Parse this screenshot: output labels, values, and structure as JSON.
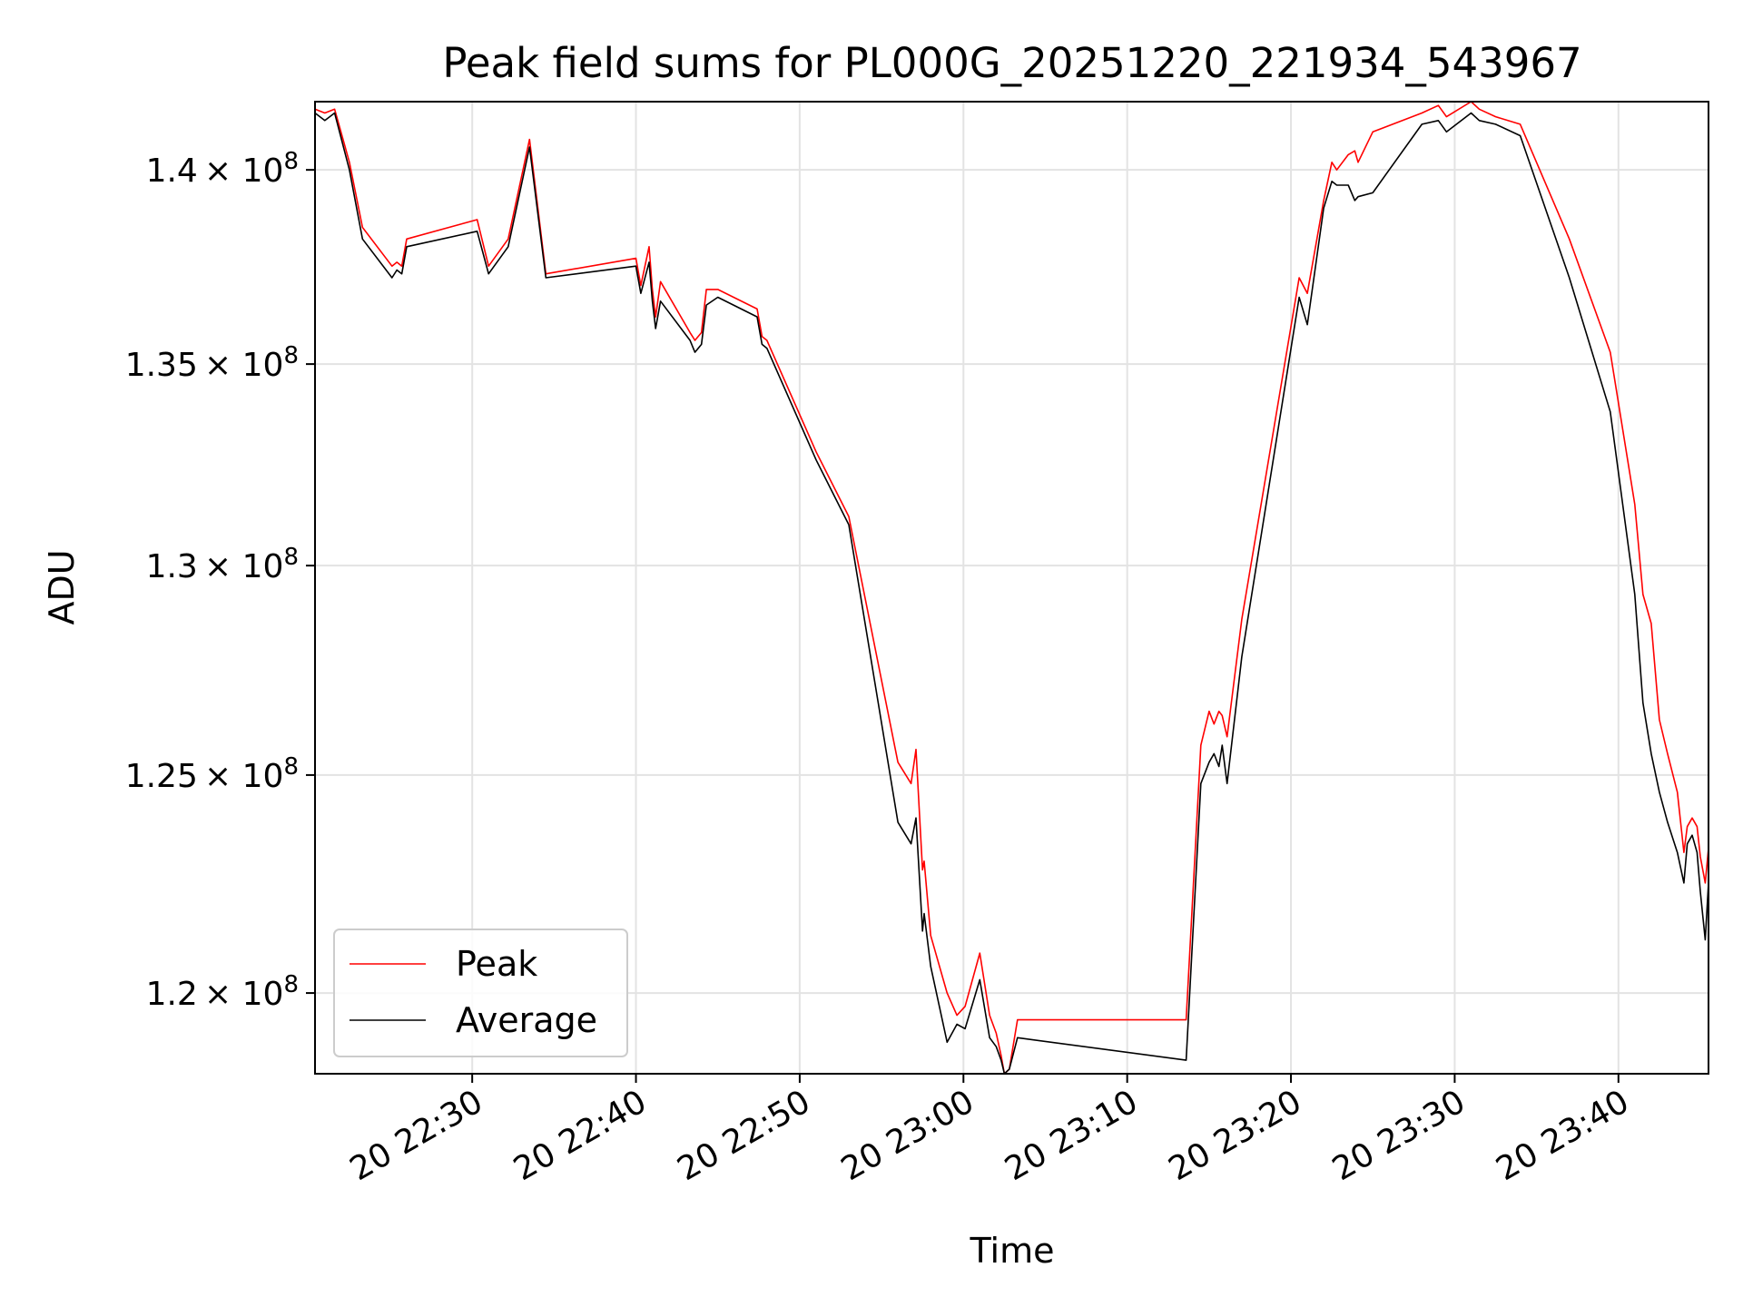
{
  "chart_data": {
    "type": "line",
    "title": "Peak field sums for PL000G_20251220_221934_543967",
    "xlabel": "Time",
    "ylabel": "ADU",
    "y_scale": "log",
    "grid": true,
    "legend_position": "lower-left",
    "x_unit": "minutes after 22:20 on the 20th",
    "xlim": [
      0.4,
      85.5
    ],
    "ylim": [
      118200000,
      141800000
    ],
    "x_ticks": [
      {
        "x": 10,
        "label": "20 22:30"
      },
      {
        "x": 20,
        "label": "20 22:40"
      },
      {
        "x": 30,
        "label": "20 22:50"
      },
      {
        "x": 40,
        "label": "20 23:00"
      },
      {
        "x": 50,
        "label": "20 23:10"
      },
      {
        "x": 60,
        "label": "20 23:20"
      },
      {
        "x": 70,
        "label": "20 23:30"
      },
      {
        "x": 80,
        "label": "20 23:40"
      }
    ],
    "y_ticks": [
      {
        "y": 120000000,
        "mantissa": "1.2",
        "exponent": "8"
      },
      {
        "y": 125000000,
        "mantissa": "1.25",
        "exponent": "8"
      },
      {
        "y": 130000000,
        "mantissa": "1.3",
        "exponent": "8"
      },
      {
        "y": 135000000,
        "mantissa": "1.35",
        "exponent": "8"
      },
      {
        "y": 140000000,
        "mantissa": "1.4",
        "exponent": "8"
      }
    ],
    "tick_times_label": "× 10",
    "series": [
      {
        "name": "Peak",
        "color": "#ff0000",
        "points": [
          [
            0.4,
            141.6
          ],
          [
            1.0,
            141.5
          ],
          [
            1.6,
            141.6
          ],
          [
            2.5,
            140.2
          ],
          [
            3.3,
            138.5
          ],
          [
            5.1,
            137.5
          ],
          [
            5.4,
            137.6
          ],
          [
            5.7,
            137.5
          ],
          [
            6.0,
            138.2
          ],
          [
            10.3,
            138.7
          ],
          [
            11.0,
            137.5
          ],
          [
            12.2,
            138.2
          ],
          [
            13.5,
            140.8
          ],
          [
            14.5,
            137.3
          ],
          [
            20.0,
            137.7
          ],
          [
            20.3,
            137.0
          ],
          [
            20.8,
            138.0
          ],
          [
            21.0,
            136.9
          ],
          [
            21.2,
            136.2
          ],
          [
            21.5,
            137.1
          ],
          [
            23.3,
            135.8
          ],
          [
            23.6,
            135.6
          ],
          [
            24.0,
            135.8
          ],
          [
            24.3,
            136.9
          ],
          [
            25.0,
            136.9
          ],
          [
            27.4,
            136.4
          ],
          [
            27.7,
            135.7
          ],
          [
            28.0,
            135.6
          ],
          [
            31.0,
            132.8
          ],
          [
            33.0,
            131.2
          ],
          [
            36.0,
            125.3
          ],
          [
            36.8,
            124.8
          ],
          [
            37.1,
            125.6
          ],
          [
            37.5,
            122.8
          ],
          [
            37.6,
            123.0
          ],
          [
            38.0,
            121.3
          ],
          [
            39.0,
            120.0
          ],
          [
            39.6,
            119.5
          ],
          [
            40.1,
            119.7
          ],
          [
            41.0,
            120.9
          ],
          [
            41.6,
            119.5
          ],
          [
            42.0,
            119.1
          ],
          [
            42.3,
            118.6
          ],
          [
            42.5,
            118.2
          ],
          [
            42.8,
            118.3
          ],
          [
            43.3,
            119.4
          ],
          [
            53.6,
            119.4
          ],
          [
            54.5,
            125.7
          ],
          [
            55.0,
            126.5
          ],
          [
            55.3,
            126.2
          ],
          [
            55.6,
            126.5
          ],
          [
            55.8,
            126.4
          ],
          [
            56.1,
            125.9
          ],
          [
            57.0,
            128.7
          ],
          [
            60.5,
            137.2
          ],
          [
            61.0,
            136.8
          ],
          [
            62.0,
            139.2
          ],
          [
            62.5,
            140.2
          ],
          [
            62.8,
            140.0
          ],
          [
            63.5,
            140.4
          ],
          [
            63.9,
            140.5
          ],
          [
            64.1,
            140.2
          ],
          [
            65.0,
            141.0
          ],
          [
            68.0,
            141.5
          ],
          [
            69.0,
            141.7
          ],
          [
            69.5,
            141.4
          ],
          [
            71.0,
            141.8
          ],
          [
            71.5,
            141.6
          ],
          [
            72.5,
            141.4
          ],
          [
            74.0,
            141.2
          ],
          [
            77.0,
            138.2
          ],
          [
            79.5,
            135.3
          ],
          [
            81.0,
            131.5
          ],
          [
            81.5,
            129.3
          ],
          [
            82.0,
            128.6
          ],
          [
            82.5,
            126.3
          ],
          [
            83.0,
            125.5
          ],
          [
            83.6,
            124.6
          ],
          [
            84.0,
            123.2
          ],
          [
            84.2,
            123.8
          ],
          [
            84.5,
            124.0
          ],
          [
            84.8,
            123.8
          ],
          [
            85.0,
            123.1
          ],
          [
            85.3,
            122.5
          ],
          [
            85.5,
            123.3
          ]
        ]
      },
      {
        "name": "Average",
        "color": "#000000",
        "points": [
          [
            0.4,
            141.5
          ],
          [
            1.0,
            141.3
          ],
          [
            1.6,
            141.5
          ],
          [
            2.5,
            140.0
          ],
          [
            3.3,
            138.2
          ],
          [
            5.1,
            137.2
          ],
          [
            5.4,
            137.4
          ],
          [
            5.7,
            137.3
          ],
          [
            6.0,
            138.0
          ],
          [
            10.3,
            138.4
          ],
          [
            11.0,
            137.3
          ],
          [
            12.2,
            138.0
          ],
          [
            13.5,
            140.6
          ],
          [
            14.5,
            137.2
          ],
          [
            20.0,
            137.5
          ],
          [
            20.3,
            136.8
          ],
          [
            20.8,
            137.6
          ],
          [
            21.0,
            136.6
          ],
          [
            21.2,
            135.9
          ],
          [
            21.5,
            136.6
          ],
          [
            23.3,
            135.6
          ],
          [
            23.6,
            135.3
          ],
          [
            24.0,
            135.5
          ],
          [
            24.3,
            136.5
          ],
          [
            25.0,
            136.7
          ],
          [
            27.4,
            136.2
          ],
          [
            27.7,
            135.5
          ],
          [
            28.0,
            135.4
          ],
          [
            31.0,
            132.6
          ],
          [
            33.0,
            131.0
          ],
          [
            36.0,
            123.9
          ],
          [
            36.8,
            123.4
          ],
          [
            37.1,
            124.0
          ],
          [
            37.5,
            121.4
          ],
          [
            37.6,
            121.8
          ],
          [
            38.0,
            120.6
          ],
          [
            39.0,
            118.9
          ],
          [
            39.6,
            119.3
          ],
          [
            40.1,
            119.2
          ],
          [
            41.0,
            120.3
          ],
          [
            41.6,
            119.0
          ],
          [
            42.0,
            118.8
          ],
          [
            42.3,
            118.5
          ],
          [
            42.5,
            118.2
          ],
          [
            42.8,
            118.3
          ],
          [
            43.3,
            119.0
          ],
          [
            53.6,
            118.5
          ],
          [
            54.5,
            124.8
          ],
          [
            55.0,
            125.3
          ],
          [
            55.3,
            125.5
          ],
          [
            55.6,
            125.2
          ],
          [
            55.8,
            125.7
          ],
          [
            56.1,
            124.8
          ],
          [
            57.0,
            127.8
          ],
          [
            60.5,
            136.7
          ],
          [
            61.0,
            136.0
          ],
          [
            62.0,
            139.0
          ],
          [
            62.5,
            139.7
          ],
          [
            62.8,
            139.6
          ],
          [
            63.5,
            139.6
          ],
          [
            63.9,
            139.2
          ],
          [
            64.1,
            139.3
          ],
          [
            65.0,
            139.4
          ],
          [
            68.0,
            141.2
          ],
          [
            69.0,
            141.3
          ],
          [
            69.5,
            141.0
          ],
          [
            71.0,
            141.5
          ],
          [
            71.5,
            141.3
          ],
          [
            72.5,
            141.2
          ],
          [
            74.0,
            140.9
          ],
          [
            77.0,
            137.2
          ],
          [
            79.5,
            133.8
          ],
          [
            81.0,
            129.3
          ],
          [
            81.5,
            126.7
          ],
          [
            82.0,
            125.5
          ],
          [
            82.5,
            124.6
          ],
          [
            83.0,
            123.9
          ],
          [
            83.6,
            123.2
          ],
          [
            84.0,
            122.5
          ],
          [
            84.2,
            123.4
          ],
          [
            84.5,
            123.6
          ],
          [
            84.8,
            123.2
          ],
          [
            85.0,
            122.3
          ],
          [
            85.3,
            121.2
          ],
          [
            85.5,
            122.5
          ]
        ]
      }
    ]
  }
}
